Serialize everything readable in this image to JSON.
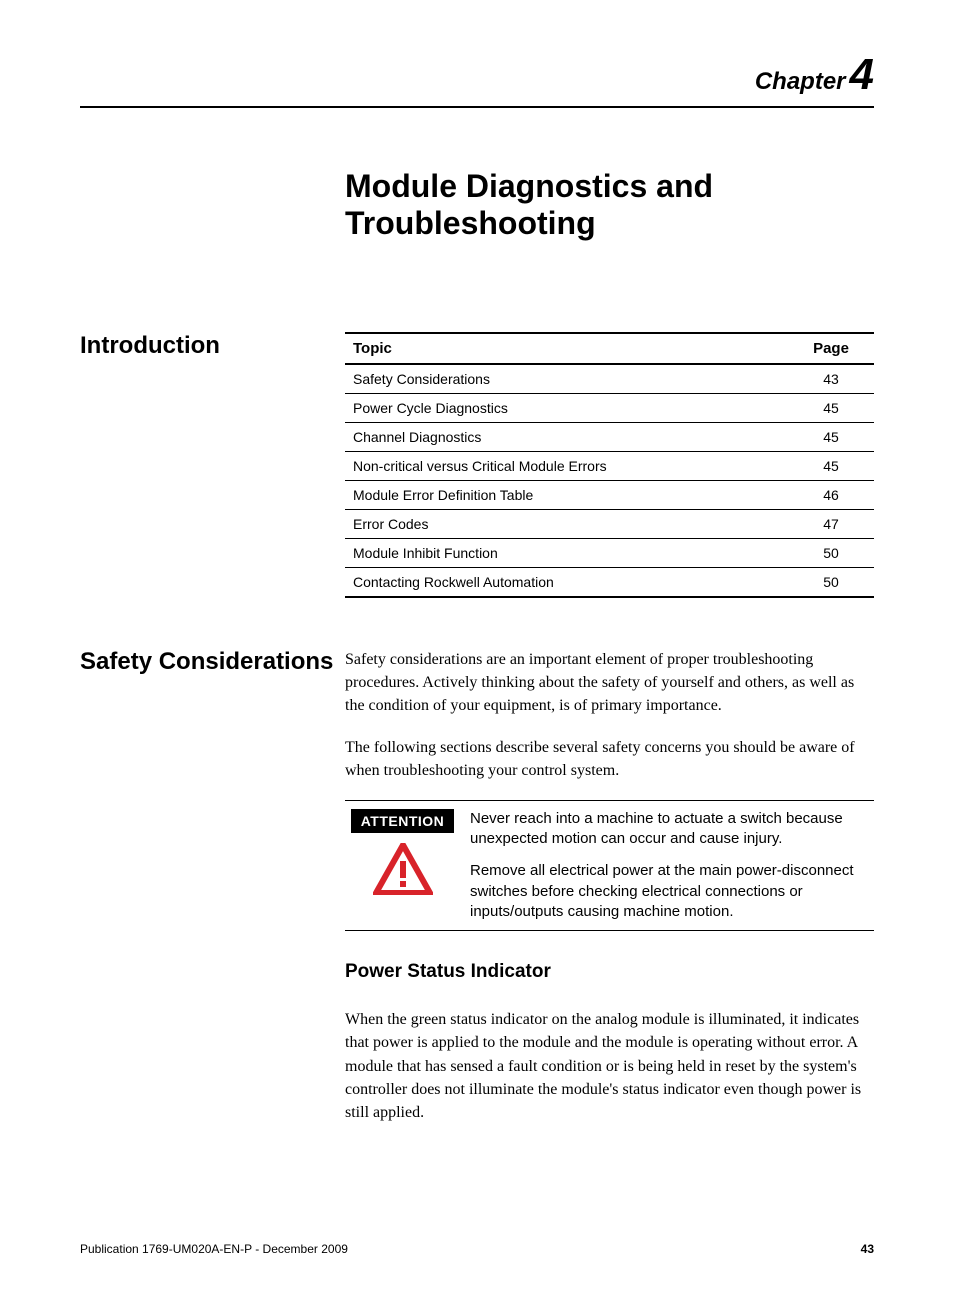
{
  "chapter": {
    "label": "Chapter",
    "number": "4",
    "title": "Module Diagnostics and Troubleshooting"
  },
  "intro": {
    "heading": "Introduction",
    "table": {
      "columns": [
        "Topic",
        "Page"
      ],
      "rows": [
        [
          "Safety Considerations",
          "43"
        ],
        [
          "Power Cycle Diagnostics",
          "45"
        ],
        [
          "Channel Diagnostics",
          "45"
        ],
        [
          "Non-critical versus Critical Module Errors",
          "45"
        ],
        [
          "Module Error Definition Table",
          "46"
        ],
        [
          "Error Codes",
          "47"
        ],
        [
          "Module Inhibit Function",
          "50"
        ],
        [
          "Contacting Rockwell Automation",
          "50"
        ]
      ]
    }
  },
  "safety": {
    "heading": "Safety Considerations",
    "para1": "Safety considerations are an important element of proper troubleshooting procedures. Actively thinking about the safety of yourself and others, as well as the condition of your equipment, is of primary importance.",
    "para2": "The following sections describe several safety concerns you should be aware of when troubleshooting your control system.",
    "attention_label": "ATTENTION",
    "attention_p1": "Never reach into a machine to actuate a switch because unexpected motion can occur and cause injury.",
    "attention_p2": "Remove all electrical power at the main power-disconnect switches before checking electrical connections or inputs/outputs causing machine motion.",
    "subheading": "Power Status Indicator",
    "para3": "When the green status indicator on the analog module is illuminated, it indicates that power is applied to the module and the module is operating without error. A module that has sensed a fault condition or is being held in reset by the system's controller does not illuminate the module's status indicator even though power is still applied."
  },
  "footer": {
    "pub": "Publication 1769-UM020A-EN-P - December 2009",
    "page": "43"
  },
  "style": {
    "icon_color": "#d8232a"
  }
}
